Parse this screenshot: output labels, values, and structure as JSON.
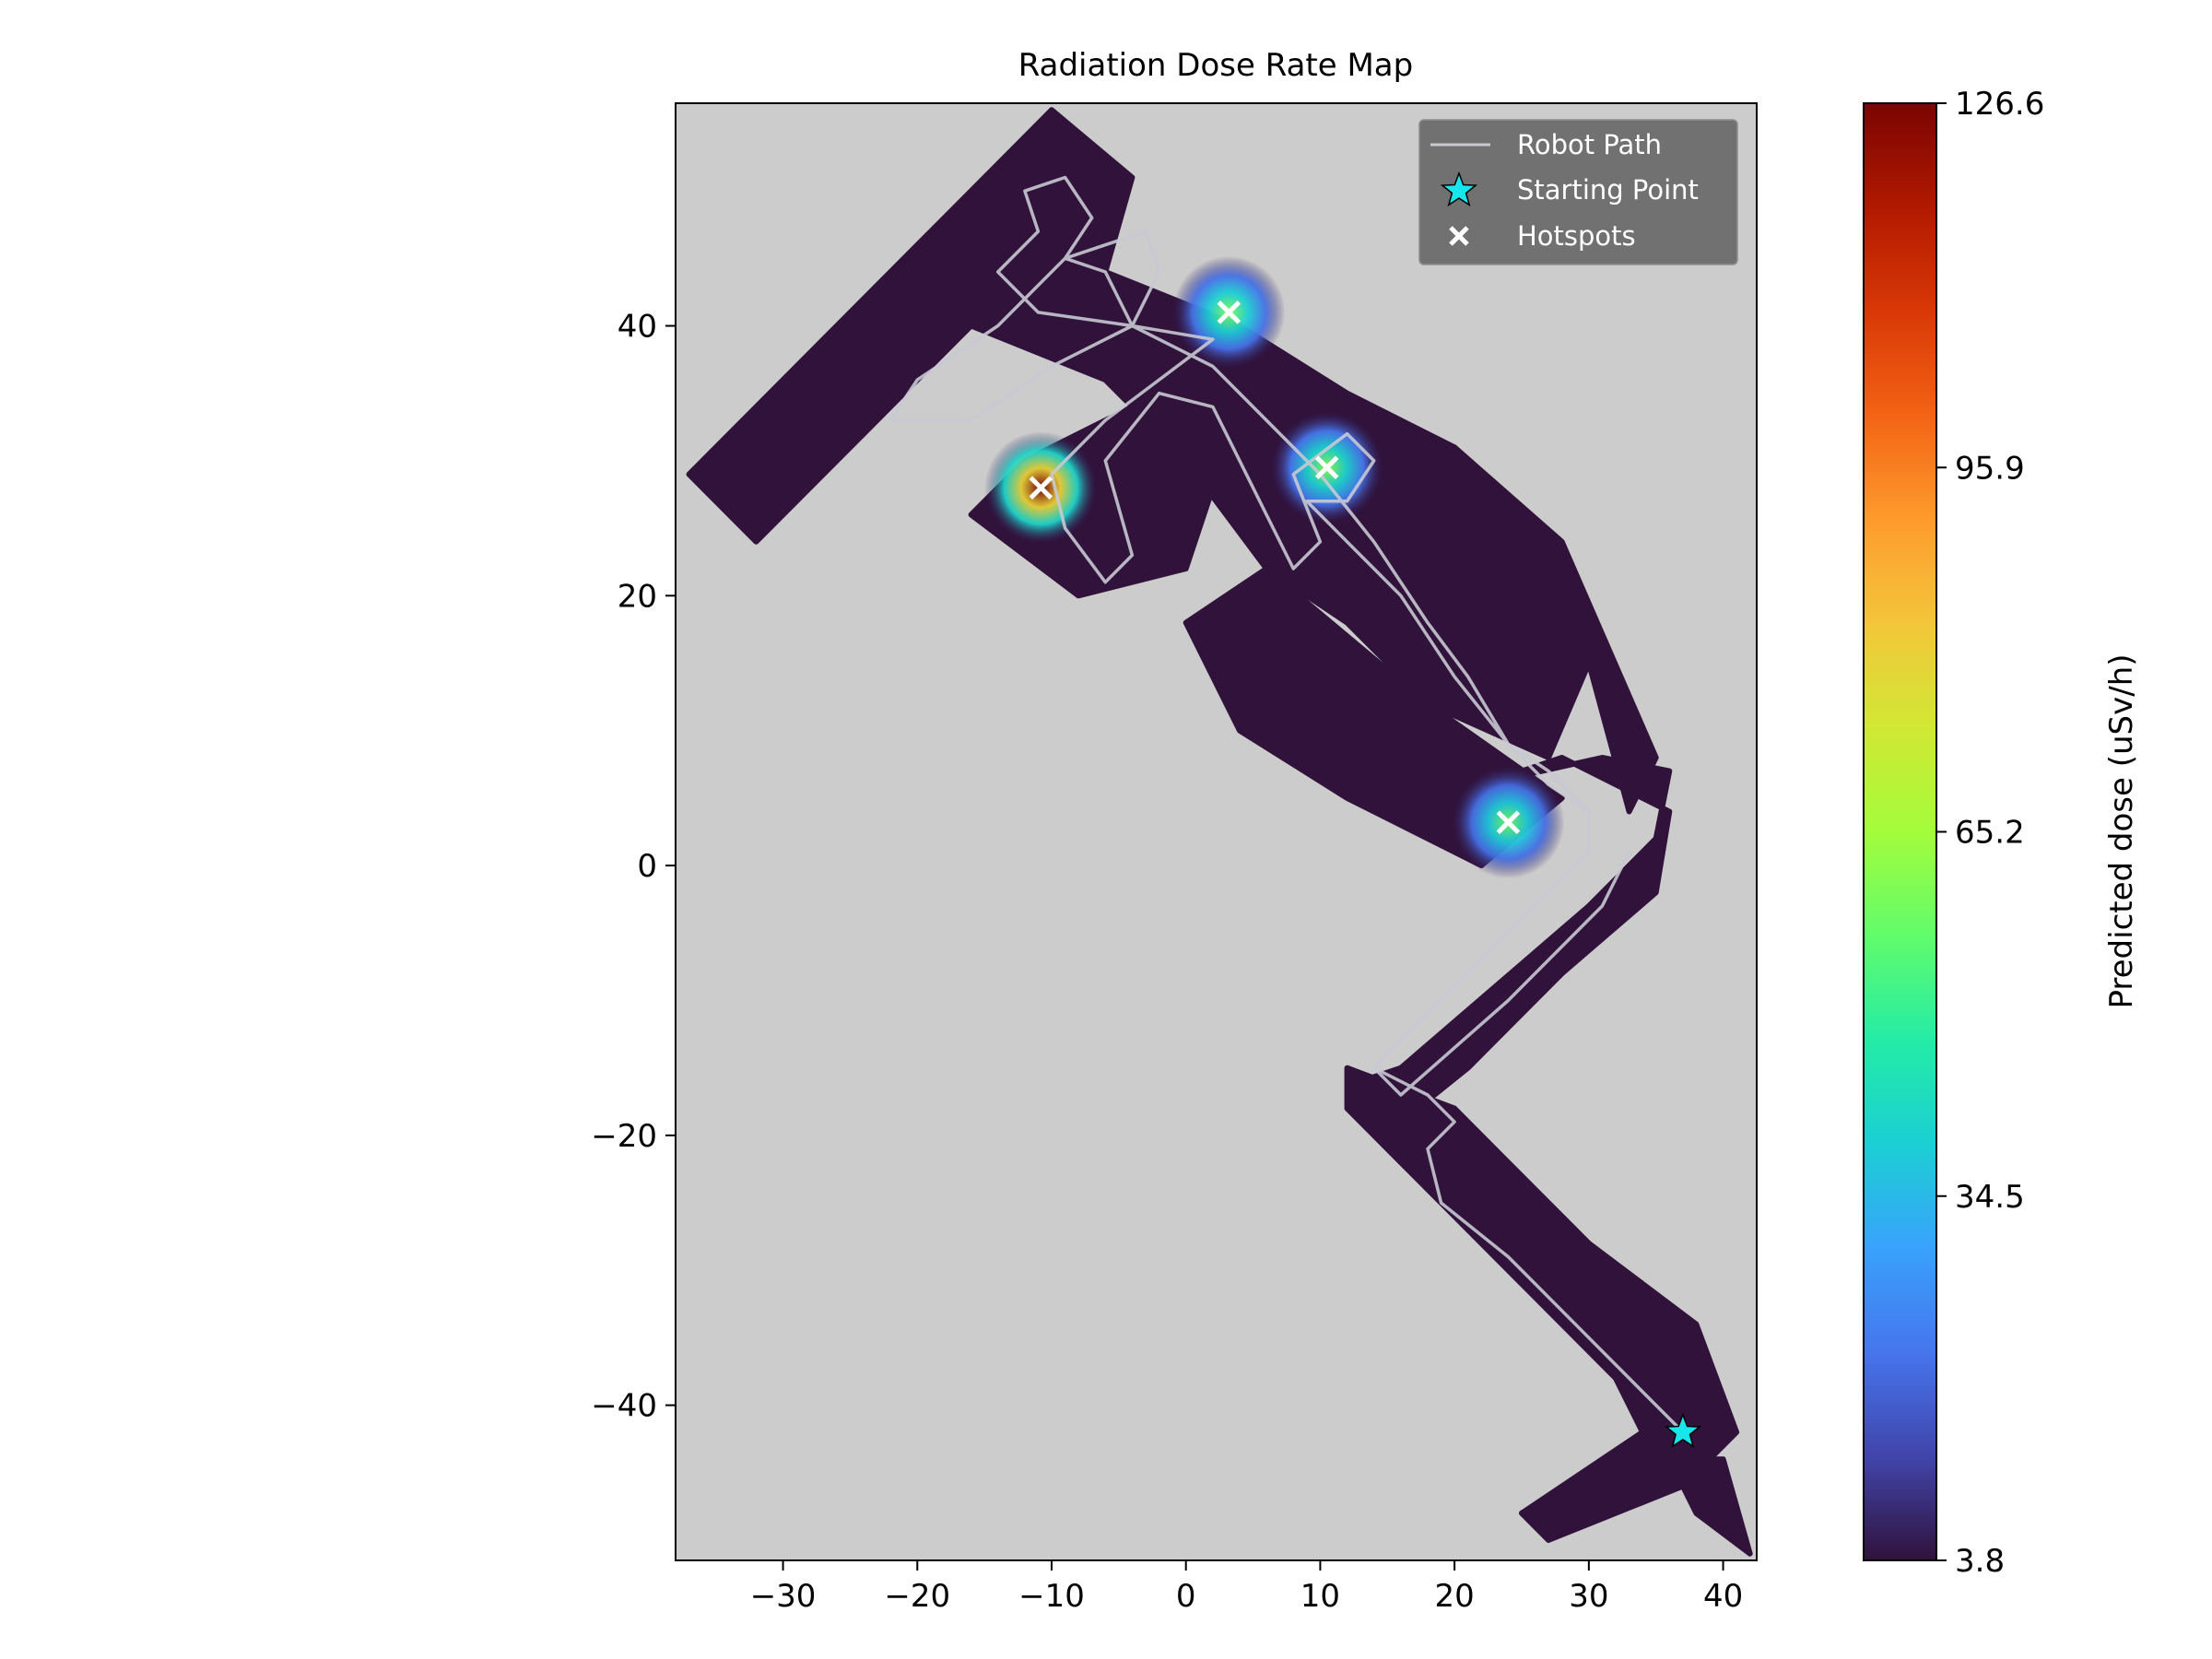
{
  "chart_data": {
    "type": "heatmap",
    "title": "Radiation Dose Rate Map",
    "xlabel": "",
    "ylabel": "",
    "xlim": [
      -38,
      42.5
    ],
    "ylim": [
      -51.5,
      56.5
    ],
    "xticks": [
      -30,
      -20,
      -10,
      0,
      10,
      20,
      30,
      40
    ],
    "xtick_labels": [
      "−30",
      "−20",
      "−10",
      "0",
      "10",
      "20",
      "30",
      "40"
    ],
    "yticks": [
      40,
      20,
      0,
      -20,
      -40
    ],
    "ytick_labels": [
      "40",
      "20",
      "0",
      "−20",
      "−40"
    ],
    "background_color": "#cccccc",
    "map_fill_color": "#30123b",
    "colorbar": {
      "label": "Predicted dose (uSv/h)",
      "min": 3.8,
      "max": 126.6,
      "ticks": [
        3.8,
        34.5,
        65.2,
        95.9,
        126.6
      ],
      "tick_labels": [
        "3.8",
        "34.5",
        "65.2",
        "95.9",
        "126.6"
      ],
      "colormap": "turbo",
      "stops": [
        "#30123b",
        "#4145ab",
        "#4675ed",
        "#39a2fc",
        "#1bcfd4",
        "#24eca6",
        "#61fc6c",
        "#a4fc3b",
        "#d1e834",
        "#f3c63a",
        "#fe9b2d",
        "#f36315",
        "#d93806",
        "#b11901",
        "#7a0402"
      ]
    },
    "legend": {
      "position": "top-right",
      "entries": [
        {
          "label": "Robot Path",
          "marker": "line",
          "color": "#c9c9d4"
        },
        {
          "label": "Starting Point",
          "marker": "star",
          "color": "#17e6ec"
        },
        {
          "label": "Hotspots",
          "marker": "x",
          "color": "#ffffff"
        }
      ]
    },
    "starting_point": {
      "x": 37,
      "y": -42
    },
    "hotspots": [
      {
        "x": 3.2,
        "y": 41.0,
        "dose": 60
      },
      {
        "x": -10.8,
        "y": 28.0,
        "dose": 126.6
      },
      {
        "x": 10.5,
        "y": 29.5,
        "dose": 62
      },
      {
        "x": 24.0,
        "y": 3.2,
        "dose": 58
      }
    ],
    "map_regions": [
      [
        [
          -37,
          29
        ],
        [
          -12,
          54
        ],
        [
          -10,
          56
        ],
        [
          -4,
          51
        ],
        [
          -6,
          44
        ],
        [
          -16,
          40
        ],
        [
          -24,
          32
        ],
        [
          -32,
          24
        ]
      ],
      [
        [
          -16,
          40
        ],
        [
          -6,
          44
        ],
        [
          4,
          40
        ],
        [
          12,
          35
        ],
        [
          20,
          31
        ],
        [
          30,
          15
        ],
        [
          27,
          8
        ],
        [
          18,
          12
        ],
        [
          12,
          18
        ],
        [
          6,
          22
        ],
        [
          0,
          30
        ],
        [
          -6,
          36
        ]
      ],
      [
        [
          -12,
          30
        ],
        [
          -4,
          34
        ],
        [
          2,
          28
        ],
        [
          0,
          22
        ],
        [
          -8,
          20
        ],
        [
          -16,
          26
        ]
      ],
      [
        [
          6,
          22
        ],
        [
          18,
          12
        ],
        [
          28,
          5
        ],
        [
          22,
          0
        ],
        [
          12,
          5
        ],
        [
          4,
          10
        ],
        [
          0,
          18
        ]
      ],
      [
        [
          20,
          31
        ],
        [
          28,
          24
        ],
        [
          35,
          8
        ],
        [
          33,
          4
        ],
        [
          30,
          15
        ]
      ],
      [
        [
          22,
          6
        ],
        [
          31,
          8
        ],
        [
          36,
          7
        ],
        [
          35,
          2
        ],
        [
          30,
          -3
        ],
        [
          16,
          -15
        ],
        [
          13,
          -16
        ],
        [
          16,
          -19
        ],
        [
          21,
          -15
        ],
        [
          28,
          -8
        ],
        [
          35,
          -2
        ],
        [
          36,
          4
        ],
        [
          28,
          8
        ]
      ],
      [
        [
          12,
          -15
        ],
        [
          20,
          -18
        ],
        [
          24,
          -22
        ],
        [
          30,
          -28
        ],
        [
          38,
          -34
        ],
        [
          41,
          -42
        ],
        [
          37,
          -46
        ],
        [
          27,
          -50
        ],
        [
          25,
          -48
        ],
        [
          34,
          -42
        ],
        [
          32,
          -38
        ],
        [
          22,
          -28
        ],
        [
          16,
          -22
        ],
        [
          12,
          -18
        ]
      ],
      [
        [
          36,
          -44
        ],
        [
          40,
          -44
        ],
        [
          42,
          -51
        ],
        [
          38,
          -48
        ]
      ]
    ],
    "robot_path": [
      [
        37,
        -42
      ],
      [
        33,
        -38
      ],
      [
        29,
        -34
      ],
      [
        24,
        -29
      ],
      [
        19,
        -25
      ],
      [
        18,
        -21
      ],
      [
        20,
        -19
      ],
      [
        18,
        -17
      ],
      [
        14,
        -15
      ],
      [
        17,
        -12
      ],
      [
        25,
        -4
      ],
      [
        30,
        1
      ],
      [
        30,
        4
      ],
      [
        27,
        6
      ],
      [
        24,
        9
      ],
      [
        21,
        14
      ],
      [
        18,
        18
      ],
      [
        14,
        24
      ],
      [
        10,
        29
      ],
      [
        6,
        33
      ],
      [
        2,
        37
      ],
      [
        -4,
        40
      ],
      [
        -10,
        37
      ],
      [
        -16,
        33
      ],
      [
        -22,
        33
      ],
      [
        -20,
        36
      ],
      [
        -14,
        40
      ],
      [
        -9,
        45
      ],
      [
        -7,
        48
      ],
      [
        -9,
        51
      ],
      [
        -12,
        50
      ],
      [
        -11,
        47
      ],
      [
        -14,
        44
      ],
      [
        -11,
        41
      ],
      [
        -4,
        40
      ],
      [
        -6,
        44
      ],
      [
        -9,
        45
      ],
      [
        -6,
        46
      ],
      [
        -3,
        47
      ],
      [
        -2,
        44
      ],
      [
        -3,
        42
      ],
      [
        -4,
        40
      ],
      [
        2,
        39
      ],
      [
        -2,
        36
      ],
      [
        -6,
        33
      ],
      [
        -10,
        29
      ],
      [
        -9,
        25
      ],
      [
        -6,
        21
      ],
      [
        -4,
        23
      ],
      [
        -6,
        30
      ],
      [
        -2,
        35
      ],
      [
        2,
        34
      ],
      [
        4,
        30
      ],
      [
        6,
        26
      ],
      [
        8,
        22
      ],
      [
        10,
        24
      ],
      [
        8,
        29
      ],
      [
        12,
        32
      ],
      [
        14,
        30
      ],
      [
        12,
        27
      ],
      [
        9,
        27
      ],
      [
        12,
        24
      ],
      [
        16,
        20
      ],
      [
        20,
        14
      ],
      [
        24,
        9
      ],
      [
        27,
        7
      ],
      [
        30,
        4
      ],
      [
        30,
        1
      ],
      [
        25,
        -4
      ],
      [
        17,
        -12
      ],
      [
        14,
        -15
      ],
      [
        16,
        -17
      ],
      [
        24,
        -10
      ],
      [
        31,
        -3
      ],
      [
        33,
        1
      ]
    ]
  }
}
